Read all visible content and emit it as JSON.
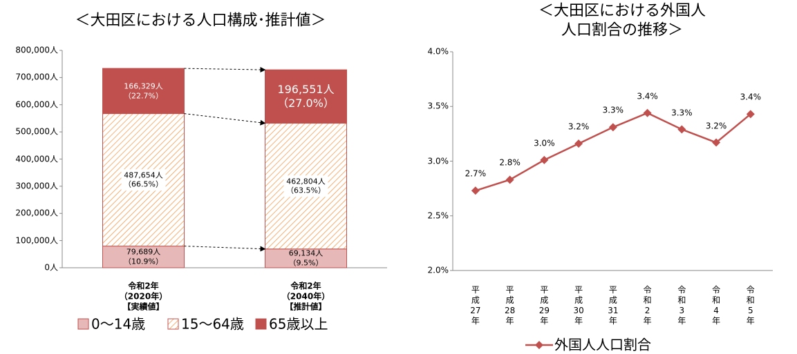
{
  "chart_data": [
    {
      "type": "stacked-bar",
      "title": "＜大田区における人口構成･推計値＞",
      "categories": [
        "令和2年\n（2020年）\n【実績値】",
        "令和2年\n（2040年）\n【推計値】"
      ],
      "series": [
        {
          "name": "0〜14歳",
          "color": "#e6b9b8",
          "values": [
            79689,
            69134
          ],
          "value_labels": [
            "79,689人\n（10.9%）",
            "69,134人\n（9.5%）"
          ]
        },
        {
          "name": "15〜64歳",
          "color": "#f79646",
          "values": [
            487654,
            462804
          ],
          "value_labels": [
            "487,654人\n（66.5%）",
            "462,804人\n（63.5%）"
          ]
        },
        {
          "name": "65歳以上",
          "color": "#c0504d",
          "values": [
            166329,
            196551
          ],
          "value_labels": [
            "166,329人\n（22.7%）",
            "196,551人\n（27.0%）"
          ]
        }
      ],
      "ylim": [
        0,
        800000
      ],
      "yticks": [
        {
          "value": 0,
          "label": "0人"
        },
        {
          "value": 100000,
          "label": "100,000人"
        },
        {
          "value": 200000,
          "label": "200,000人"
        },
        {
          "value": 300000,
          "label": "300,000人"
        },
        {
          "value": 400000,
          "label": "400,000人"
        },
        {
          "value": 500000,
          "label": "500,000人"
        },
        {
          "value": 600000,
          "label": "600,000人"
        },
        {
          "value": 700000,
          "label": "700,000人"
        },
        {
          "value": 800000,
          "label": "800,000人"
        }
      ],
      "legend": "bottom"
    },
    {
      "type": "line",
      "title": "＜大田区における外国人人口割合の推移＞",
      "categories": [
        "平成27年",
        "平成28年",
        "平成29年",
        "平成30年",
        "平成31年",
        "令和2年",
        "令和3年",
        "令和4年",
        "令和5年"
      ],
      "series": [
        {
          "name": "外国人人口割合",
          "color": "#c0504d",
          "values": [
            2.73,
            2.83,
            3.01,
            3.16,
            3.31,
            3.44,
            3.29,
            3.17,
            3.43
          ],
          "value_labels": [
            "2.7%",
            "2.8%",
            "3.0%",
            "3.2%",
            "3.3%",
            "3.4%",
            "3.3%",
            "3.2%",
            "3.4%"
          ]
        }
      ],
      "ylim": [
        2.0,
        4.0
      ],
      "yticks": [
        {
          "value": 2.0,
          "label": "2.0%"
        },
        {
          "value": 2.5,
          "label": "2.5%"
        },
        {
          "value": 3.0,
          "label": "3.0%"
        },
        {
          "value": 3.5,
          "label": "3.5%"
        },
        {
          "value": 4.0,
          "label": "4.0%"
        }
      ],
      "legend": "bottom"
    }
  ]
}
